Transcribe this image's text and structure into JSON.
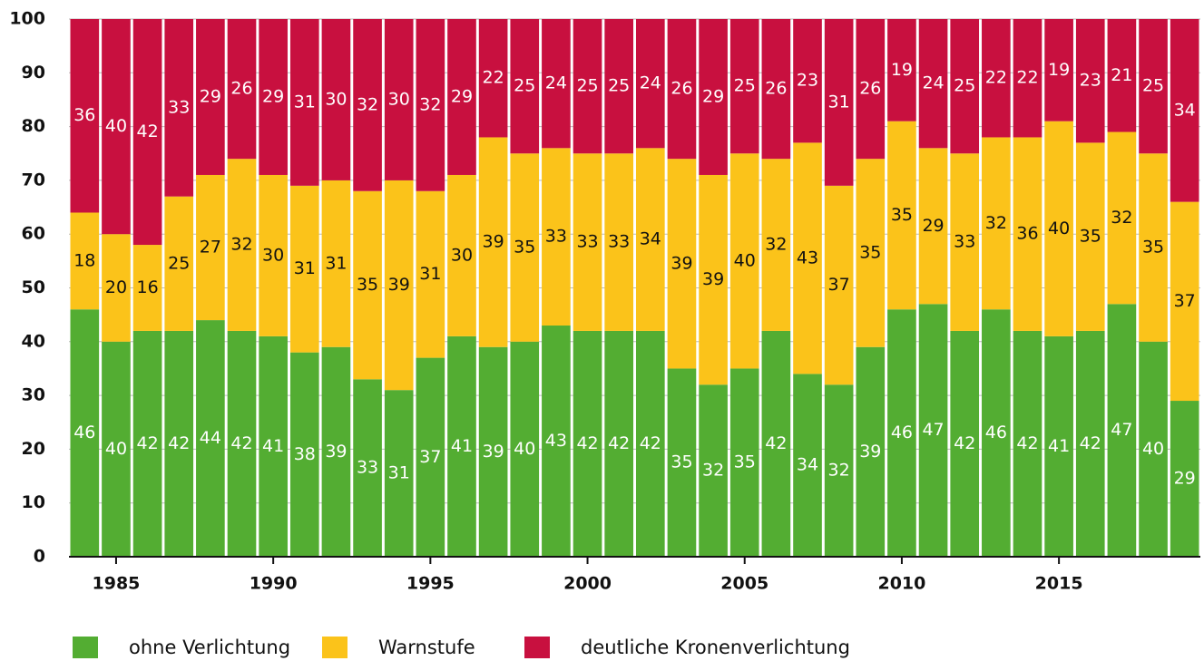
{
  "chart_data": {
    "type": "stacked-bar",
    "x": [
      1984,
      1985,
      1986,
      1987,
      1988,
      1989,
      1990,
      1991,
      1992,
      1993,
      1994,
      1995,
      1996,
      1997,
      1998,
      1999,
      2000,
      2001,
      2002,
      2003,
      2004,
      2005,
      2006,
      2007,
      2008,
      2009,
      2010,
      2011,
      2012,
      2013,
      2014,
      2015,
      2016,
      2017,
      2018,
      2019
    ],
    "xlim": [
      1983.5,
      2019.5
    ],
    "xticks": [
      1985,
      1990,
      1995,
      2000,
      2005,
      2010,
      2015
    ],
    "ylim": [
      0,
      100
    ],
    "yticks": [
      0,
      10,
      20,
      30,
      40,
      50,
      60,
      70,
      80,
      90,
      100
    ],
    "grid": true,
    "legend": "bottom",
    "series": [
      {
        "name": "ohne Verlichtung",
        "color": "#53ad32",
        "label_color": "#ffffff",
        "values": [
          46,
          40,
          42,
          42,
          44,
          42,
          41,
          38,
          39,
          33,
          31,
          37,
          41,
          39,
          40,
          43,
          42,
          42,
          42,
          35,
          32,
          35,
          42,
          34,
          32,
          39,
          46,
          47,
          42,
          46,
          42,
          41,
          42,
          47,
          40,
          29
        ]
      },
      {
        "name": "Warnstufe",
        "color": "#fbc31a",
        "label_color": "#111111",
        "values": [
          18,
          20,
          16,
          25,
          27,
          32,
          30,
          31,
          31,
          35,
          39,
          31,
          30,
          39,
          35,
          33,
          33,
          33,
          34,
          39,
          39,
          40,
          32,
          43,
          37,
          35,
          35,
          29,
          33,
          32,
          36,
          40,
          35,
          32,
          35,
          37
        ]
      },
      {
        "name": "deutliche Kronenverlichtung",
        "color": "#c8103f",
        "label_color": "#ffffff",
        "values": [
          36,
          40,
          42,
          33,
          29,
          26,
          29,
          31,
          30,
          32,
          30,
          32,
          29,
          22,
          25,
          24,
          25,
          25,
          24,
          26,
          29,
          25,
          26,
          23,
          31,
          26,
          19,
          24,
          25,
          22,
          22,
          19,
          23,
          21,
          25,
          34
        ]
      }
    ]
  }
}
